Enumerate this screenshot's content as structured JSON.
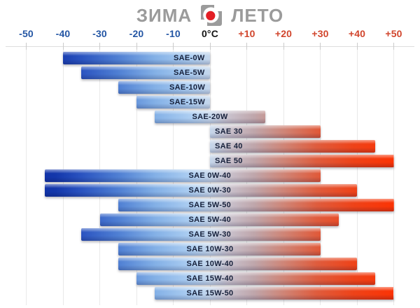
{
  "header": {
    "winter_label": "ЗИМА",
    "summer_label": "ЛЕТО",
    "logo_icon": "oil-brand-logo"
  },
  "colors": {
    "cold_blue": "#1437ab",
    "light_blue": "#aecff2",
    "hot_red": "#fb3305",
    "neutral_gray": "#9b9b9b",
    "axis_cold": "#2456a4",
    "axis_zero": "#141414",
    "axis_warm": "#d1452c",
    "logo_red": "#e31f25"
  },
  "axis": {
    "ticks": [
      {
        "label": "-50",
        "value": -50,
        "tone": "cold"
      },
      {
        "label": "-40",
        "value": -40,
        "tone": "cold"
      },
      {
        "label": "-30",
        "value": -30,
        "tone": "cold"
      },
      {
        "label": "-20",
        "value": -20,
        "tone": "cold"
      },
      {
        "label": "-10",
        "value": -10,
        "tone": "cold"
      },
      {
        "label": "0°C",
        "value": 0,
        "tone": "zero"
      },
      {
        "label": "+10",
        "value": 10,
        "tone": "warm"
      },
      {
        "label": "+20",
        "value": 20,
        "tone": "warm"
      },
      {
        "label": "+30",
        "value": 30,
        "tone": "warm"
      },
      {
        "label": "+40",
        "value": 40,
        "tone": "warm"
      },
      {
        "label": "+50",
        "value": 50,
        "tone": "warm"
      }
    ]
  },
  "chart_data": {
    "type": "bar",
    "orientation": "horizontal-range",
    "title": "",
    "x_unit": "°C",
    "xlim": [
      -50,
      50
    ],
    "grid": true,
    "legend": {
      "left": "ЗИМА",
      "right": "ЛЕТО",
      "position": "top-center"
    },
    "x_ticks": [
      -50,
      -40,
      -30,
      -20,
      -10,
      0,
      10,
      20,
      30,
      40,
      50
    ],
    "bars": [
      {
        "label": "SAE-0W",
        "from": -40,
        "to": 0
      },
      {
        "label": "SAE-5W",
        "from": -35,
        "to": 0
      },
      {
        "label": "SAE-10W",
        "from": -25,
        "to": 0
      },
      {
        "label": "SAE-15W",
        "from": -20,
        "to": 0
      },
      {
        "label": "SAE-20W",
        "from": -15,
        "to": 15
      },
      {
        "label": "SAE 30",
        "from": 0,
        "to": 30
      },
      {
        "label": "SAE 40",
        "from": 0,
        "to": 45
      },
      {
        "label": "SAE 50",
        "from": 0,
        "to": 50
      },
      {
        "label": "SAE 0W-40",
        "from": -45,
        "to": 30
      },
      {
        "label": "SAE 0W-30",
        "from": -45,
        "to": 40
      },
      {
        "label": "SAE 5W-50",
        "from": -25,
        "to": 50
      },
      {
        "label": "SAE 5W-40",
        "from": -30,
        "to": 35
      },
      {
        "label": "SAE 5W-30",
        "from": -35,
        "to": 30
      },
      {
        "label": "SAE 10W-30",
        "from": -25,
        "to": 30
      },
      {
        "label": "SAE 10W-40",
        "from": -25,
        "to": 40
      },
      {
        "label": "SAE 15W-40",
        "from": -20,
        "to": 45
      },
      {
        "label": "SAE 15W-50",
        "from": -15,
        "to": 50
      }
    ]
  }
}
